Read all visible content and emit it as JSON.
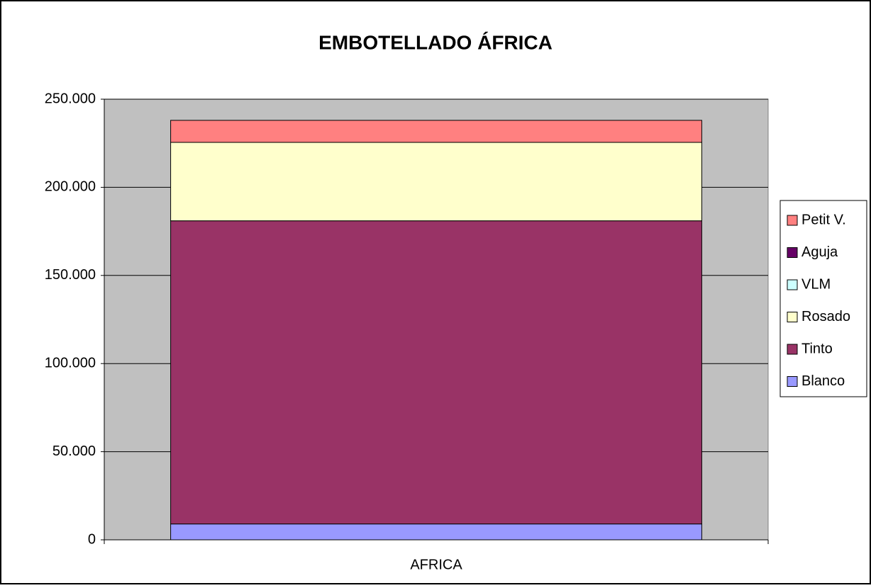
{
  "chart_data": {
    "type": "stacked_bar",
    "title": "EMBOTELLADO ÁFRICA",
    "categories": [
      "AFRICA"
    ],
    "series": [
      {
        "name": "Blanco",
        "color": "#9999ff",
        "values": [
          9000
        ]
      },
      {
        "name": "Tinto",
        "color": "#993366",
        "values": [
          172000
        ]
      },
      {
        "name": "Rosado",
        "color": "#ffffcc",
        "values": [
          44500
        ]
      },
      {
        "name": "VLM",
        "color": "#ccffff",
        "values": [
          0
        ]
      },
      {
        "name": "Aguja",
        "color": "#660066",
        "values": [
          0
        ]
      },
      {
        "name": "Petit V.",
        "color": "#ff8080",
        "values": [
          12500
        ]
      }
    ],
    "ylim": [
      0,
      250000
    ],
    "yticks": [
      0,
      {
        "value": 50000,
        "label": "50.000"
      },
      {
        "value": 100000,
        "label": "100.000"
      },
      {
        "value": 150000,
        "label": "150.000"
      },
      {
        "value": 200000,
        "label": "200.000"
      },
      {
        "value": 250000,
        "label": "250.000"
      }
    ],
    "grid": true,
    "legend": "right",
    "plot_background": "#c0c0c0"
  }
}
